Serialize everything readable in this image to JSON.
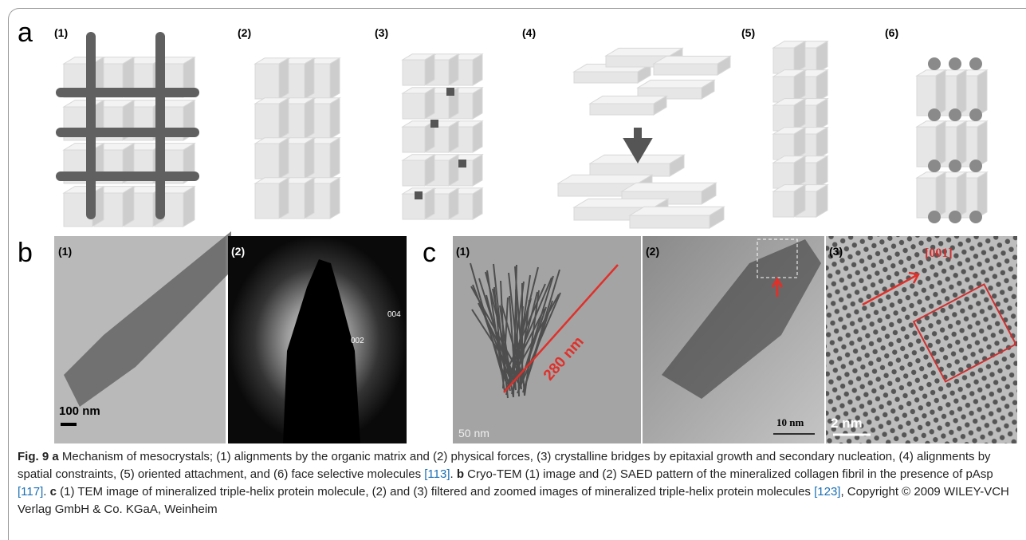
{
  "panel_a": {
    "label": "a",
    "items": [
      "(1)",
      "(2)",
      "(3)",
      "(4)",
      "(5)",
      "(6)"
    ]
  },
  "panel_b": {
    "label": "b",
    "items": [
      {
        "sub": "(1)",
        "scale": "100 nm"
      },
      {
        "sub": "(2)",
        "rings": [
          "002",
          "004"
        ]
      }
    ]
  },
  "panel_c": {
    "label": "c",
    "items": [
      {
        "sub": "(1)",
        "measure": "280 nm",
        "scale": "50 nm"
      },
      {
        "sub": "(2)",
        "scale": "10 nm"
      },
      {
        "sub": "(3)",
        "direction": "[001]",
        "scale": "2 nm"
      }
    ]
  },
  "caption": {
    "figure": "Fig. 9",
    "parts": [
      {
        "label": "a",
        "text": " Mechanism of mesocrystals; (1) alignments by the organic matrix and (2) physical forces, (3) crystalline bridges by epitaxial growth and secondary nucleation, (4) alignments by spatial constraints, (5) oriented attachment, and (6) face selective molecules ",
        "ref": "[113]",
        "after": ". "
      },
      {
        "label": "b",
        "text": " Cryo-TEM (1) image and (2) SAED pattern of the mineralized collagen fibril in the presence of pAsp ",
        "ref": "[117]",
        "after": ". "
      },
      {
        "label": "c",
        "text": " (1) TEM image of mineralized triple-helix protein molecule, (2) and (3) filtered and zoomed images of mineralized triple-helix protein molecules ",
        "ref": "[123]",
        "after": ", Copyright © 2009 WILEY-VCH Verlag GmbH & Co. KGaA, Weinheim"
      }
    ]
  }
}
